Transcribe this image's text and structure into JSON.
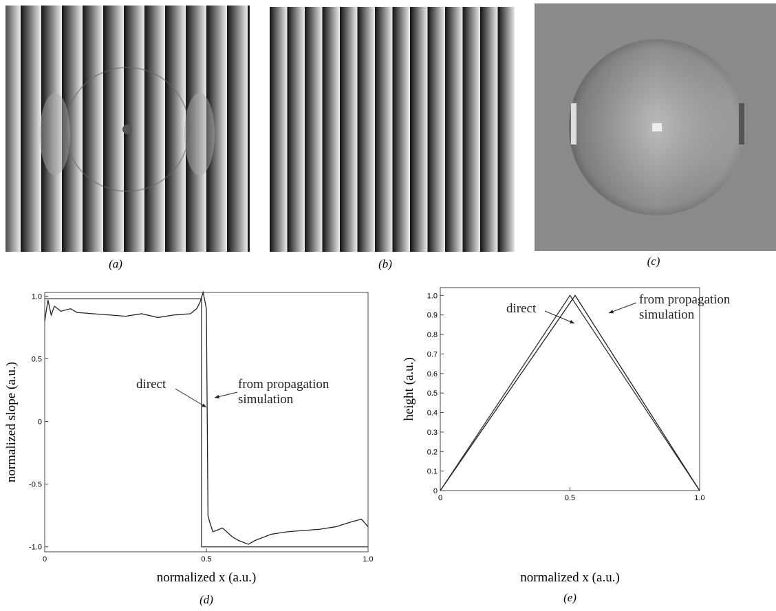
{
  "panels": [
    {
      "label": "(a)"
    },
    {
      "label": "(b)"
    },
    {
      "label": "(c)"
    }
  ],
  "chart_data": [
    {
      "type": "line",
      "caption": "(d)",
      "xlabel": "normalized x (a.u.)",
      "ylabel": "normalized slope (a.u.)",
      "xlim": [
        0,
        1
      ],
      "ylim": [
        -1.04,
        1.03
      ],
      "xticks": [
        0,
        0.5,
        {
          "value": 1,
          "label": "1.0"
        }
      ],
      "yticks": [
        {
          "value": -1,
          "label": "-1.0"
        },
        -0.5,
        0,
        0.5,
        {
          "value": 1,
          "label": "1.0"
        }
      ],
      "series": [
        {
          "name": "direct",
          "color": "#333333",
          "x": [
            0,
            0.485,
            0.485,
            1
          ],
          "values": [
            0.98,
            0.98,
            -1,
            -1
          ]
        },
        {
          "name": "from propagation simulation",
          "color": "#222222",
          "x": [
            0,
            0.01,
            0.02,
            0.03,
            0.05,
            0.08,
            0.1,
            0.15,
            0.2,
            0.25,
            0.3,
            0.35,
            0.4,
            0.45,
            0.47,
            0.48,
            0.49,
            0.5,
            0.505,
            0.51,
            0.52,
            0.55,
            0.58,
            0.6,
            0.63,
            0.65,
            0.7,
            0.75,
            0.8,
            0.85,
            0.9,
            0.95,
            0.98,
            1.0
          ],
          "values": [
            0.8,
            0.97,
            0.85,
            0.92,
            0.88,
            0.9,
            0.87,
            0.86,
            0.85,
            0.84,
            0.86,
            0.83,
            0.85,
            0.86,
            0.9,
            0.95,
            1.03,
            0.9,
            -0.75,
            -0.8,
            -0.88,
            -0.85,
            -0.92,
            -0.95,
            -0.98,
            -0.95,
            -0.9,
            -0.88,
            -0.87,
            -0.86,
            -0.84,
            -0.8,
            -0.78,
            -0.84
          ]
        }
      ]
    },
    {
      "type": "line",
      "caption": "(e)",
      "xlabel": "normalized x (a.u.)",
      "ylabel": "height (a.u.)",
      "xlim": [
        0,
        1
      ],
      "ylim": [
        0,
        1.04
      ],
      "xticks": [
        0,
        0.5,
        {
          "value": 1,
          "label": "1.0"
        }
      ],
      "yticks": [
        0,
        0.1,
        0.2,
        0.3,
        0.4,
        0.5,
        0.6,
        0.7,
        0.8,
        0.9,
        {
          "value": 1,
          "label": "1.0"
        }
      ],
      "series": [
        {
          "name": "direct",
          "color": "#333333",
          "x": [
            0,
            0.5,
            1
          ],
          "values": [
            0,
            1,
            0
          ]
        },
        {
          "name": "from propagation simulation",
          "color": "#222222",
          "x": [
            0,
            0.52,
            1
          ],
          "values": [
            0,
            1,
            0
          ]
        }
      ]
    }
  ]
}
